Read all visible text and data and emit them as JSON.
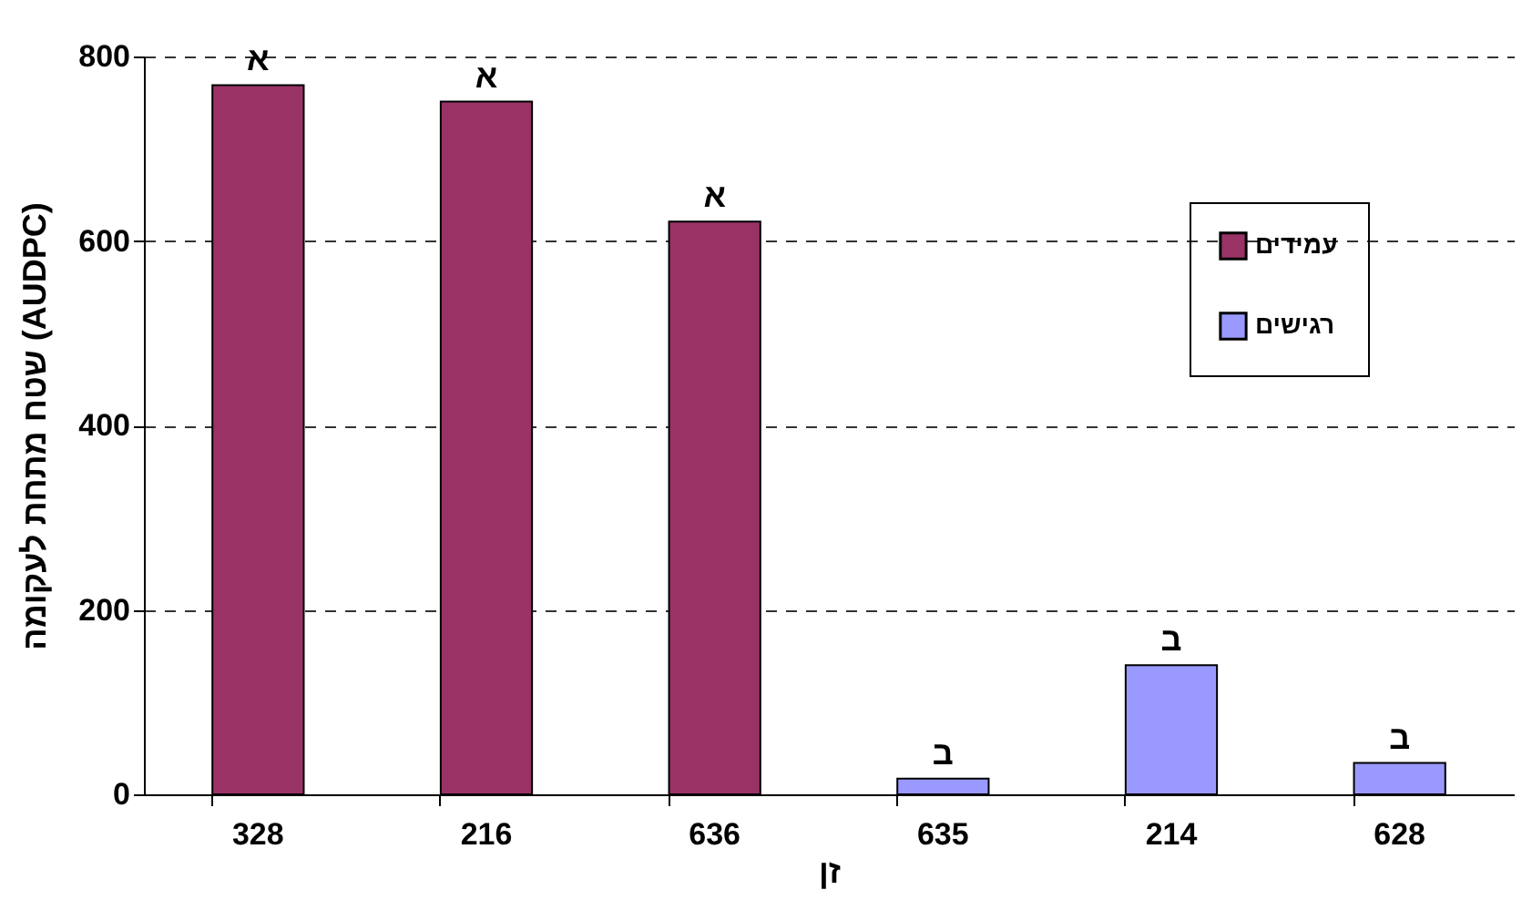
{
  "chart_data": {
    "type": "bar",
    "categories": [
      "328",
      "216",
      "636",
      "635",
      "214",
      "628"
    ],
    "xlabel": "זן",
    "ylabel": "שטח מתחת לעקומה (AUDPC)",
    "series": [
      {
        "name": "עמידים",
        "color": "#993366",
        "values": [
          769,
          751,
          621,
          null,
          null,
          null
        ]
      },
      {
        "name": "רגישים",
        "color": "#9999ff",
        "values": [
          null,
          null,
          null,
          17,
          140,
          34
        ]
      }
    ],
    "ylim": [
      0,
      800
    ],
    "yticks": [
      0,
      200,
      400,
      600,
      800
    ],
    "grid": "y",
    "legend": "top right",
    "annotations": [
      {
        "text": "א",
        "x": "328",
        "y": 769
      },
      {
        "text": "א",
        "x": "216",
        "y": 751
      },
      {
        "text": "א",
        "x": "636",
        "y": 621
      },
      {
        "text": "ב",
        "x": "635",
        "y": 17
      },
      {
        "text": "ב",
        "x": "214",
        "y": 140
      },
      {
        "text": "ב",
        "x": "628",
        "y": 34
      }
    ]
  }
}
